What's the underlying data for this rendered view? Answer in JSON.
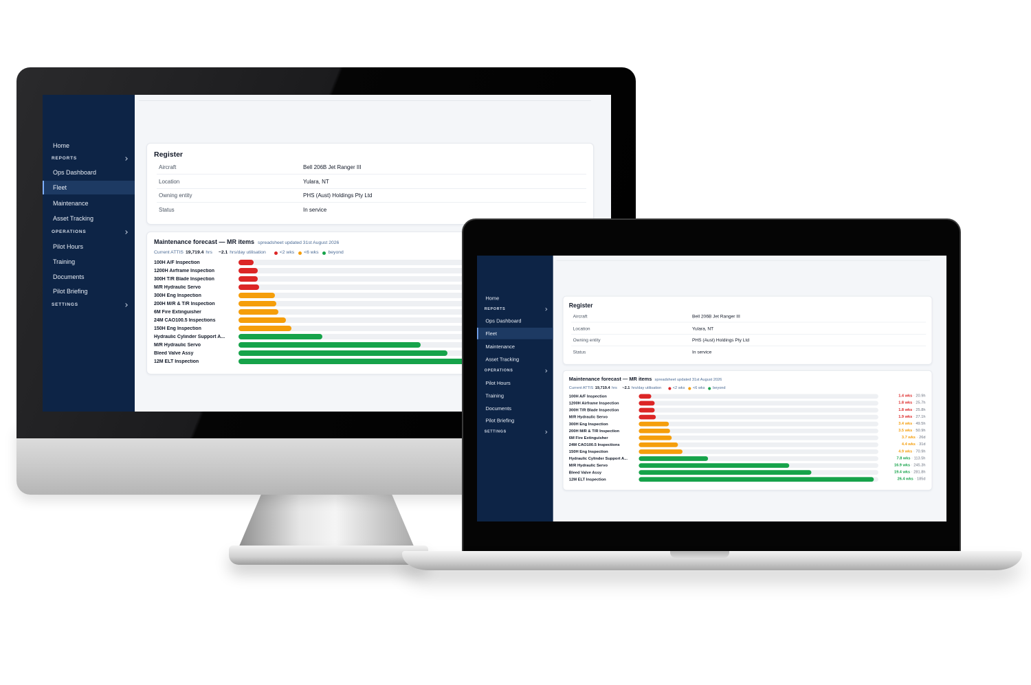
{
  "app": {
    "nav": [
      {
        "label": "Home"
      },
      {
        "label": "REPORTS",
        "section": true
      },
      {
        "label": "Ops Dashboard"
      },
      {
        "label": "Fleet",
        "active": true
      },
      {
        "label": "Maintenance"
      },
      {
        "label": "Asset Tracking"
      },
      {
        "label": "OPERATIONS",
        "section": true
      },
      {
        "label": "Pilot Hours"
      },
      {
        "label": "Training"
      },
      {
        "label": "Documents"
      },
      {
        "label": "Pilot Briefing"
      },
      {
        "label": "SETTINGS",
        "section": true
      }
    ],
    "register": {
      "title": "Register",
      "rows": [
        [
          "Aircraft",
          "Bell 206B Jet Ranger III"
        ],
        [
          "Location",
          "Yulara, NT"
        ],
        [
          "Owning entity",
          "PHS (Aust) Holdings Pty Ltd"
        ],
        [
          "Status",
          "In service"
        ]
      ]
    },
    "forecast": {
      "title": "Maintenance forecast — MR items",
      "updated": "spreadsheet updated 31st August 2026",
      "attis_label": "Current ATTIS",
      "attis_value": "19,719.4",
      "attis_unit": "hrs",
      "utilisation_value": "~2.1",
      "utilisation_label": "hrs/day utilisation",
      "legend": [
        {
          "label": "<2 wks",
          "color": "#dc2626"
        },
        {
          "label": "<6 wks",
          "color": "#f59e0b"
        },
        {
          "label": "beyond",
          "color": "#16a34a"
        }
      ],
      "separator": "·",
      "items": [
        {
          "name": "100H A/F Inspection",
          "weeks": 1.4,
          "weeks_label": "1.4 wks",
          "remaining": "20.9h",
          "color": "#dc2626"
        },
        {
          "name": "1200H Airframe Inspection",
          "weeks": 1.8,
          "weeks_label": "1.8 wks",
          "remaining": "25.7h",
          "color": "#dc2626"
        },
        {
          "name": "300H T/R Blade Inspection",
          "weeks": 1.8,
          "weeks_label": "1.8 wks",
          "remaining": "25.8h",
          "color": "#dc2626"
        },
        {
          "name": "M/R Hydraulic Servo",
          "weeks": 1.9,
          "weeks_label": "1.9 wks",
          "remaining": "27.1h",
          "color": "#dc2626"
        },
        {
          "name": "300H Eng Inspection",
          "weeks": 3.4,
          "weeks_label": "3.4 wks",
          "remaining": "49.5h",
          "color": "#f59e0b"
        },
        {
          "name": "200H M/R & T/R Inspection",
          "weeks": 3.5,
          "weeks_label": "3.5 wks",
          "remaining": "50.9h",
          "color": "#f59e0b"
        },
        {
          "name": "6M Fire Extinguisher",
          "weeks": 3.7,
          "weeks_label": "3.7 wks",
          "remaining": "26d",
          "color": "#f59e0b"
        },
        {
          "name": "24M CAO100.5 Inspections",
          "weeks": 4.4,
          "weeks_label": "4.4 wks",
          "remaining": "31d",
          "color": "#f59e0b"
        },
        {
          "name": "150H Eng Inspection",
          "weeks": 4.9,
          "weeks_label": "4.9 wks",
          "remaining": "70.9h",
          "color": "#f59e0b"
        },
        {
          "name": "Hydraulic Cylinder Support A...",
          "weeks": 7.8,
          "weeks_label": "7.8 wks",
          "remaining": "113.5h",
          "color": "#16a34a"
        },
        {
          "name": "M/R Hydraulic Servo",
          "weeks": 16.9,
          "weeks_label": "16.9 wks",
          "remaining": "245.3h",
          "color": "#16a34a"
        },
        {
          "name": "Bleed Valve Assy",
          "weeks": 19.4,
          "weeks_label": "19.4 wks",
          "remaining": "281.8h",
          "color": "#16a34a"
        },
        {
          "name": "12M ELT Inspection",
          "weeks": 26.4,
          "weeks_label": "26.4 wks",
          "remaining": "185d",
          "color": "#16a34a"
        }
      ]
    }
  }
}
